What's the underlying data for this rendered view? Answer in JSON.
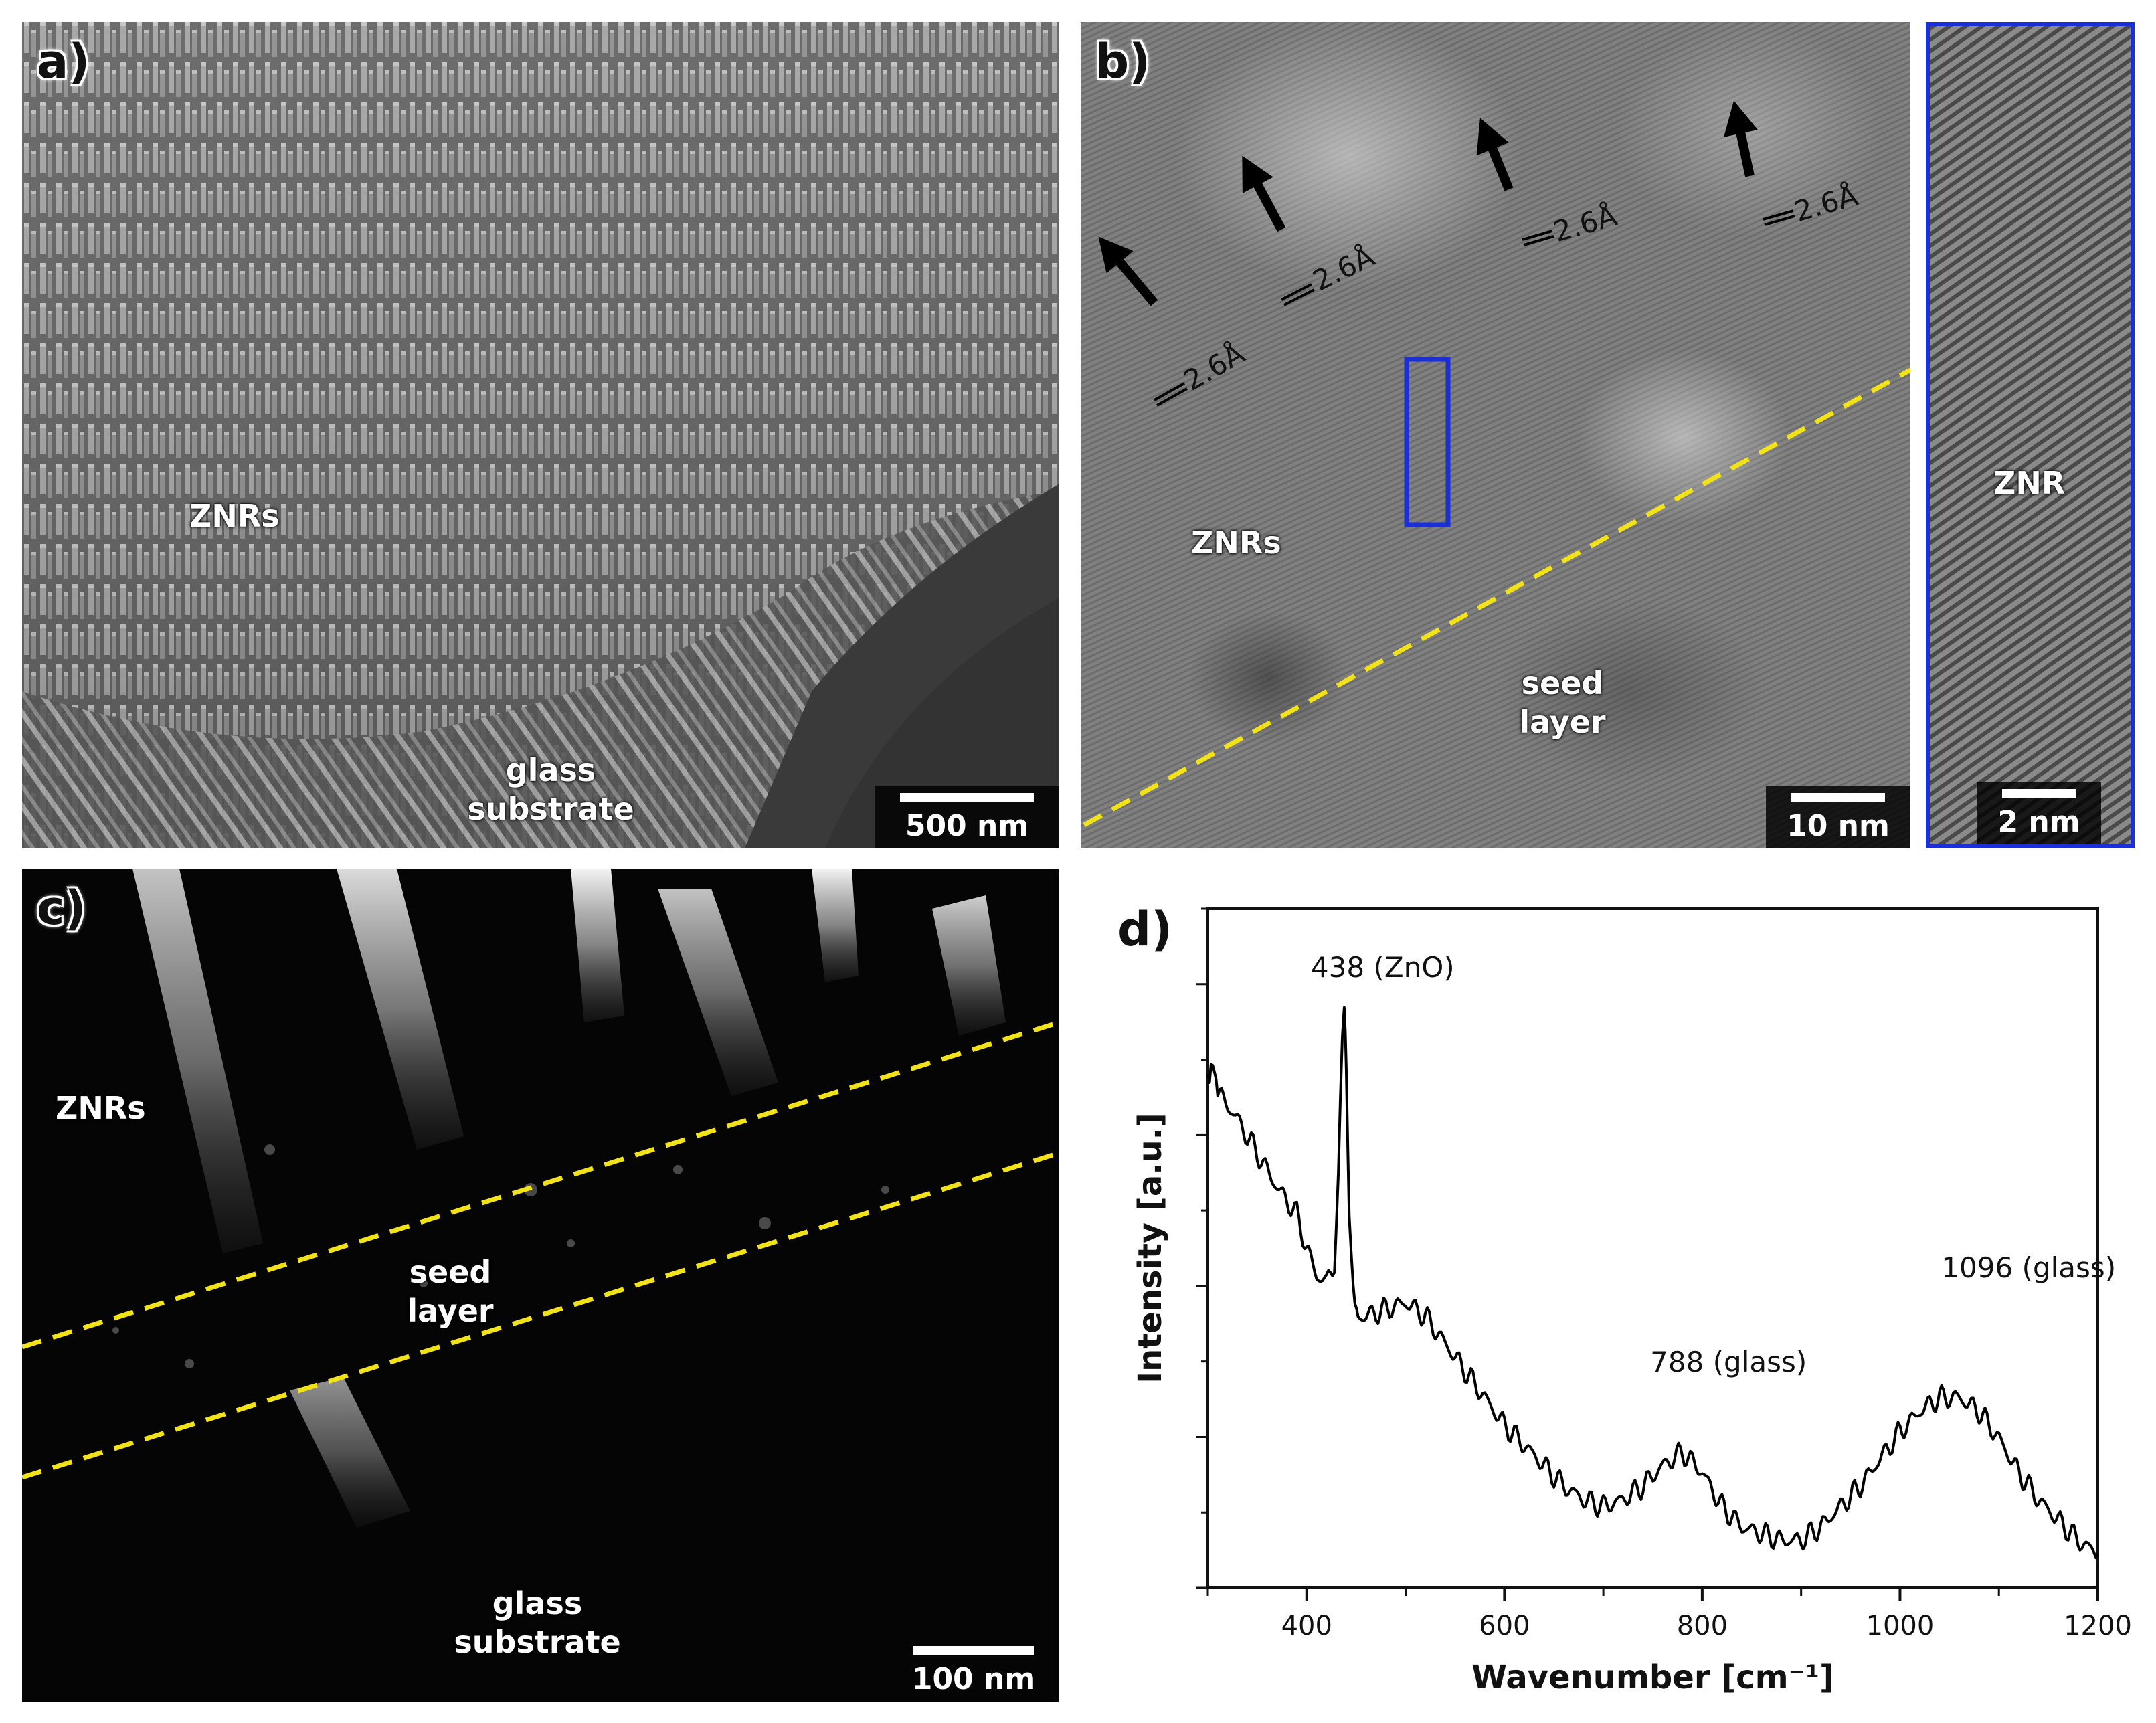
{
  "panels": {
    "a": {
      "label": "a)",
      "labels": {
        "znrs": "ZNRs",
        "substrate_line1": "glass",
        "substrate_line2": "substrate"
      },
      "scale": "500 nm"
    },
    "b": {
      "label": "b)",
      "labels": {
        "znrs": "ZNRs",
        "seed_line1": "seed",
        "seed_line2": "layer",
        "inset": "ZNR"
      },
      "spacings": [
        "2.6Å",
        "2.6Å",
        "2.6Å",
        "2.6Å"
      ],
      "scale": "10 nm",
      "inset_scale": "2 nm",
      "colors": {
        "boundary": "#f2e21a",
        "selection_box": "#1b2fd6"
      }
    },
    "c": {
      "label": "c)",
      "labels": {
        "znrs": "ZNRs",
        "seed_line1": "seed",
        "seed_line2": "layer",
        "substrate_line1": "glass",
        "substrate_line2": "substrate"
      },
      "scale": "100 nm",
      "colors": {
        "boundary": "#f2e21a"
      }
    },
    "d": {
      "label": "d)",
      "chart_data": {
        "type": "line",
        "xlabel": "Wavenumber [cm⁻¹]",
        "ylabel": "Intensity [a.u.]",
        "xlim": [
          300,
          1200
        ],
        "ylim": [
          0,
          1
        ],
        "xticks": [
          "400",
          "600",
          "800",
          "1000",
          "1200"
        ],
        "series": [
          {
            "x": [
              300,
              305,
              310,
              330,
              350,
              370,
              390,
              400,
              410,
              420,
              428,
              432,
              436,
              438,
              440,
              443,
              447,
              452,
              460,
              480,
              500,
              520,
              540,
              560,
              580,
              600,
              620,
              640,
              660,
              680,
              700,
              720,
              740,
              760,
              780,
              800,
              820,
              840,
              860,
              880,
              900,
              920,
              940,
              960,
              980,
              1000,
              1020,
              1040,
              1060,
              1080,
              1100,
              1120,
              1140,
              1160,
              1180,
              1200
            ],
            "y": [
              0.74,
              0.77,
              0.73,
              0.69,
              0.64,
              0.59,
              0.55,
              0.5,
              0.46,
              0.45,
              0.48,
              0.6,
              0.8,
              0.86,
              0.78,
              0.56,
              0.44,
              0.4,
              0.4,
              0.41,
              0.42,
              0.4,
              0.36,
              0.32,
              0.28,
              0.24,
              0.21,
              0.18,
              0.15,
              0.13,
              0.12,
              0.13,
              0.15,
              0.18,
              0.2,
              0.17,
              0.12,
              0.09,
              0.08,
              0.07,
              0.07,
              0.09,
              0.12,
              0.15,
              0.19,
              0.23,
              0.26,
              0.28,
              0.28,
              0.26,
              0.22,
              0.17,
              0.13,
              0.1,
              0.07,
              0.05
            ]
          }
        ],
        "annotations": [
          {
            "text": "438 (ZnO)",
            "x": 438,
            "y": 0.86
          },
          {
            "text": "788 (glass)",
            "x": 788,
            "y": 0.2
          },
          {
            "text": "1096 (glass)",
            "x": 1096,
            "y": 0.28
          }
        ],
        "grid": false
      }
    }
  }
}
